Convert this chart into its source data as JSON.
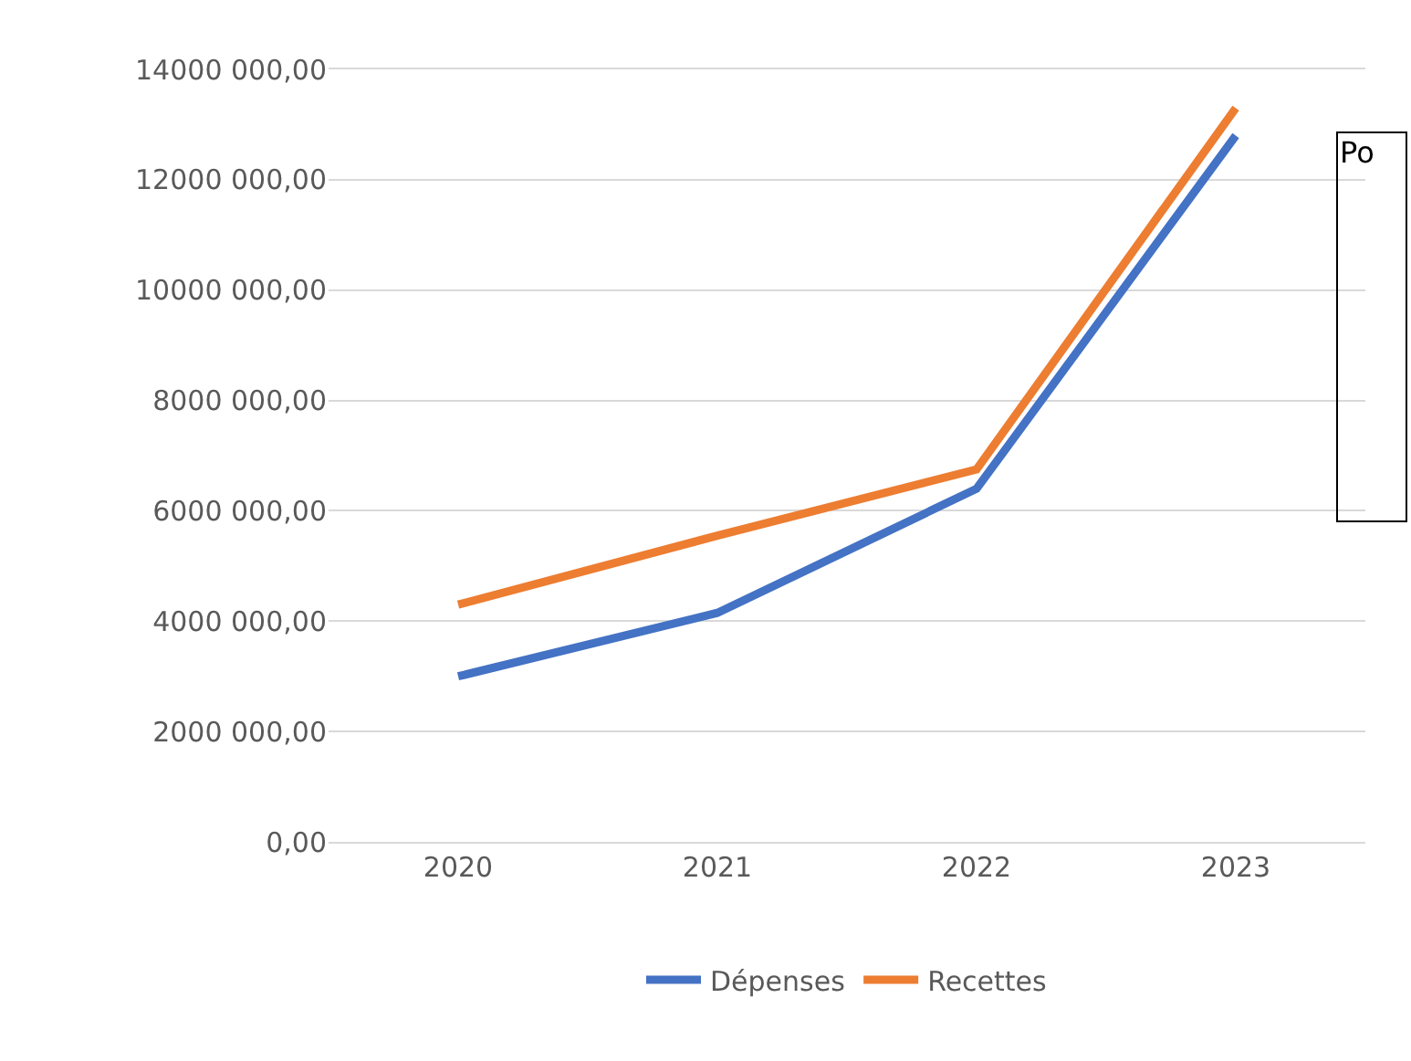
{
  "chart_data": {
    "type": "line",
    "categories": [
      "2020",
      "2021",
      "2022",
      "2023"
    ],
    "series": [
      {
        "name": "Dépenses",
        "color": "#4472c4",
        "values": [
          3000000,
          4150000,
          6400000,
          12800000
        ]
      },
      {
        "name": "Recettes",
        "color": "#ed7d31",
        "values": [
          4300000,
          5550000,
          6750000,
          13300000
        ]
      }
    ],
    "ylim": [
      0,
      14000000
    ],
    "yticks": [
      {
        "value": 0,
        "label": "0,00"
      },
      {
        "value": 2000000,
        "label": "2000 000,00"
      },
      {
        "value": 4000000,
        "label": "4000 000,00"
      },
      {
        "value": 6000000,
        "label": "6000 000,00"
      },
      {
        "value": 8000000,
        "label": "8000 000,00"
      },
      {
        "value": 10000000,
        "label": "10000 000,00"
      },
      {
        "value": 12000000,
        "label": "12000 000,00"
      },
      {
        "value": 14000000,
        "label": "14000 000,00"
      }
    ],
    "grid": "y",
    "legend": "bottom",
    "marker": "none",
    "line_style": "solid",
    "annotations": [
      "Po"
    ]
  }
}
